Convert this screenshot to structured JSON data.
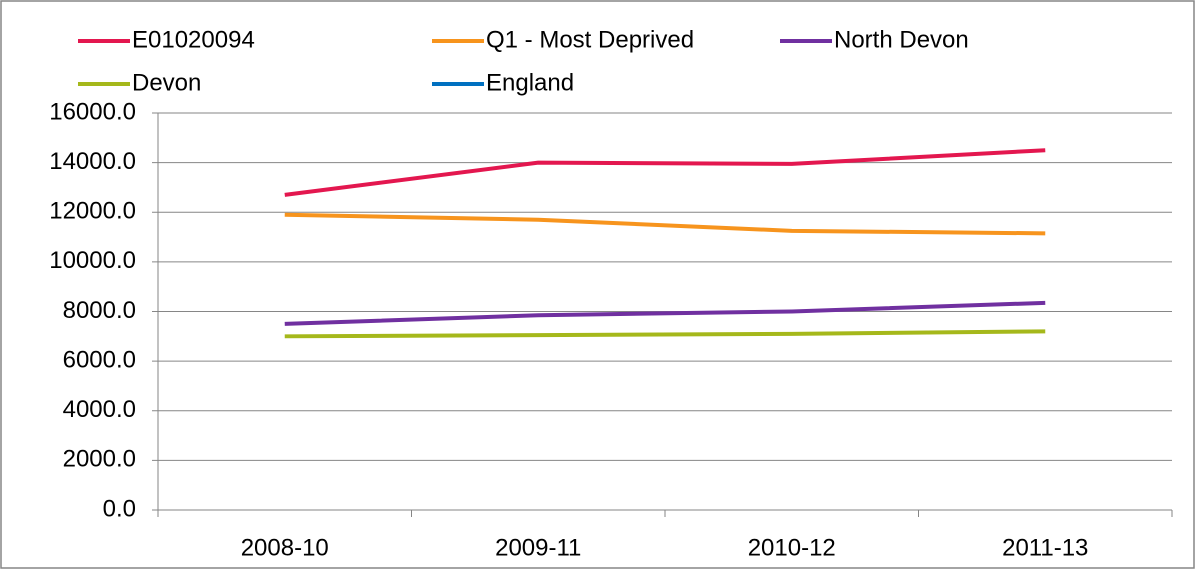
{
  "chart_data": {
    "type": "line",
    "categories": [
      "2008-10",
      "2009-11",
      "2010-12",
      "2011-13"
    ],
    "series": [
      {
        "name": "E01020094",
        "color": "#e3174f",
        "values": [
          12700,
          14000,
          13950,
          14500
        ]
      },
      {
        "name": "Q1 - Most Deprived",
        "color": "#f7941d",
        "values": [
          11900,
          11700,
          11250,
          11150
        ]
      },
      {
        "name": "North Devon",
        "color": "#7030a0",
        "values": [
          7500,
          7850,
          8000,
          8350
        ]
      },
      {
        "name": "Devon",
        "color": "#a5b81b",
        "values": [
          7000,
          7050,
          7100,
          7200
        ]
      },
      {
        "name": "England",
        "color": "#0070c0",
        "values": [
          null,
          null,
          null,
          null
        ]
      }
    ],
    "ylim": [
      0,
      16000
    ],
    "yticks": [
      {
        "value": 0,
        "label": "0.0"
      },
      {
        "value": 2000,
        "label": "2000.0"
      },
      {
        "value": 4000,
        "label": "4000.0"
      },
      {
        "value": 6000,
        "label": "6000.0"
      },
      {
        "value": 8000,
        "label": "8000.0"
      },
      {
        "value": 10000,
        "label": "10000.0"
      },
      {
        "value": 12000,
        "label": "12000.0"
      },
      {
        "value": 14000,
        "label": "14000.0"
      },
      {
        "value": 16000,
        "label": "16000.0"
      }
    ],
    "grid": true
  }
}
